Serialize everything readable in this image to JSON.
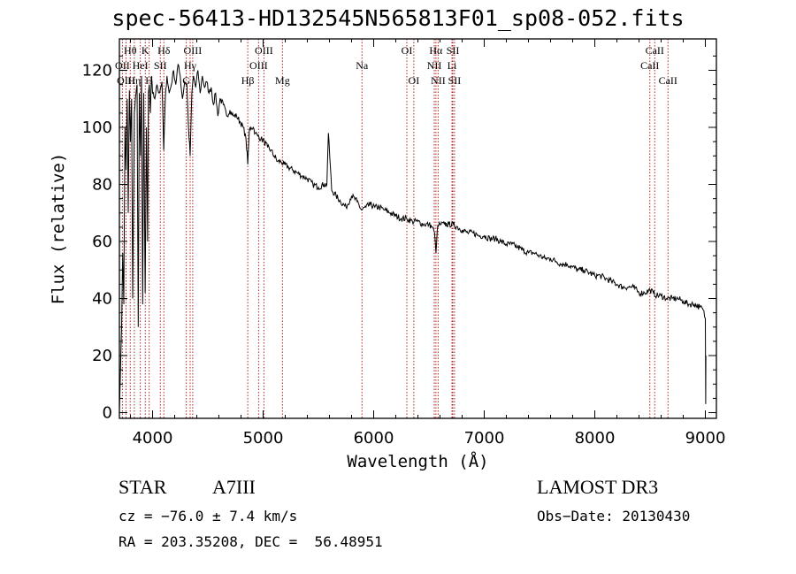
{
  "chart_data": {
    "type": "line",
    "title": "spec-56413-HD132545N565813F01_sp08-052.fits",
    "xlabel": "Wavelength (Å)",
    "ylabel": "Flux (relative)",
    "xlim": [
      3700,
      9100
    ],
    "ylim": [
      -2,
      131
    ],
    "xticks": [
      4000,
      5000,
      6000,
      7000,
      8000,
      9000
    ],
    "xtick_labels": [
      "4000",
      "5000",
      "6000",
      "7000",
      "8000",
      "9000"
    ],
    "yticks": [
      0,
      20,
      40,
      60,
      80,
      100,
      120
    ],
    "ytick_labels": [
      "0",
      "20",
      "40",
      "60",
      "80",
      "100",
      "120"
    ],
    "series": [
      {
        "name": "flux",
        "x": [
          3700,
          3720,
          3730,
          3740,
          3750,
          3760,
          3770,
          3780,
          3790,
          3800,
          3810,
          3820,
          3835,
          3850,
          3860,
          3870,
          3880,
          3890,
          3900,
          3910,
          3920,
          3933,
          3945,
          3955,
          3962,
          3970,
          3980,
          3990,
          4000,
          4020,
          4040,
          4060,
          4085,
          4101,
          4115,
          4130,
          4150,
          4170,
          4190,
          4210,
          4230,
          4250,
          4270,
          4290,
          4310,
          4325,
          4340,
          4355,
          4370,
          4390,
          4410,
          4430,
          4450,
          4470,
          4490,
          4510,
          4530,
          4550,
          4570,
          4590,
          4610,
          4640,
          4670,
          4700,
          4730,
          4760,
          4790,
          4820,
          4845,
          4861,
          4875,
          4890,
          4910,
          4930,
          4950,
          4980,
          5010,
          5040,
          5070,
          5100,
          5130,
          5160,
          5190,
          5230,
          5270,
          5310,
          5350,
          5400,
          5450,
          5500,
          5550,
          5577,
          5590,
          5620,
          5660,
          5700,
          5750,
          5800,
          5850,
          5890,
          5930,
          5970,
          6010,
          6050,
          6100,
          6150,
          6200,
          6250,
          6300,
          6350,
          6400,
          6450,
          6500,
          6530,
          6550,
          6563,
          6575,
          6590,
          6610,
          6640,
          6680,
          6720,
          6760,
          6800,
          6850,
          6900,
          6950,
          7000,
          7050,
          7100,
          7150,
          7200,
          7250,
          7300,
          7350,
          7400,
          7450,
          7500,
          7550,
          7600,
          7650,
          7700,
          7750,
          7800,
          7850,
          7900,
          7950,
          8000,
          8050,
          8100,
          8150,
          8200,
          8250,
          8300,
          8350,
          8400,
          8450,
          8500,
          8530,
          8560,
          8600,
          8650,
          8700,
          8750,
          8800,
          8850,
          8900,
          8950,
          8980,
          9000,
          9003,
          9005
        ],
        "y": [
          1,
          30,
          56,
          38,
          100,
          85,
          110,
          70,
          113,
          95,
          110,
          40,
          105,
          112,
          115,
          30,
          112,
          90,
          118,
          38,
          112,
          42,
          100,
          60,
          112,
          115,
          105,
          118,
          112,
          110,
          115,
          112,
          116,
          92,
          110,
          118,
          112,
          115,
          120,
          115,
          122,
          118,
          110,
          116,
          115,
          100,
          90,
          112,
          118,
          114,
          120,
          112,
          118,
          114,
          116,
          112,
          114,
          108,
          112,
          104,
          110,
          108,
          104,
          106,
          104,
          104,
          102,
          100,
          96,
          87,
          99,
          100,
          100,
          98,
          97,
          96,
          95,
          93,
          92,
          90,
          88,
          88,
          87,
          86,
          85,
          84,
          83,
          82,
          80,
          79,
          80,
          80,
          98,
          78,
          76,
          74,
          72,
          76,
          74,
          71,
          72,
          73,
          72,
          72,
          71,
          70,
          69,
          68,
          68,
          67,
          67,
          66,
          66,
          65,
          63,
          56,
          64,
          66,
          66,
          66,
          66,
          66,
          65,
          64,
          63,
          63,
          62,
          62,
          61,
          61,
          60,
          59,
          59,
          58,
          57,
          56,
          56,
          55,
          54,
          54,
          53,
          52,
          52,
          51,
          50,
          50,
          49,
          48,
          48,
          47,
          46,
          45,
          44,
          44,
          44,
          42,
          42,
          43,
          42,
          41,
          41,
          40,
          40,
          40,
          39,
          38,
          38,
          37,
          36,
          33,
          3,
          20
        ]
      }
    ],
    "lines": [
      {
        "label": "Hθ",
        "wave": 3798,
        "tier": 1
      },
      {
        "label": "OII",
        "wave": 3727,
        "tier": 2
      },
      {
        "label": "OIII",
        "wave": 3760,
        "tier": 3
      },
      {
        "label": "Hη",
        "wave": 3835,
        "tier": 3
      },
      {
        "label": "HeI",
        "wave": 3889,
        "tier": 2
      },
      {
        "label": "K",
        "wave": 3934,
        "tier": 1
      },
      {
        "label": "SII",
        "wave": 4070,
        "tier": 2
      },
      {
        "label": "H",
        "wave": 3969,
        "tier": 3
      },
      {
        "label": "Hδ",
        "wave": 4102,
        "tier": 1
      },
      {
        "label": "OIII",
        "wave": 4363,
        "tier": 1
      },
      {
        "label": "Hγ",
        "wave": 4340,
        "tier": 2
      },
      {
        "label": "G",
        "wave": 4305,
        "tier": 3
      },
      {
        "label": "OIII",
        "wave": 5007,
        "tier": 1
      },
      {
        "label": "OIII",
        "wave": 4959,
        "tier": 2
      },
      {
        "label": "Hβ",
        "wave": 4861,
        "tier": 3
      },
      {
        "label": "Mg",
        "wave": 5175,
        "tier": 3
      },
      {
        "label": "Na",
        "wave": 5894,
        "tier": 2
      },
      {
        "label": "OI",
        "wave": 6300,
        "tier": 1
      },
      {
        "label": "OI",
        "wave": 6363,
        "tier": 3
      },
      {
        "label": "Hα",
        "wave": 6563,
        "tier": 1
      },
      {
        "label": "NII",
        "wave": 6548,
        "tier": 2
      },
      {
        "label": "NII",
        "wave": 6583,
        "tier": 3
      },
      {
        "label": "SII",
        "wave": 6716,
        "tier": 1
      },
      {
        "label": "Li",
        "wave": 6708,
        "tier": 2
      },
      {
        "label": "SII",
        "wave": 6731,
        "tier": 3
      },
      {
        "label": "CaII",
        "wave": 8542,
        "tier": 1
      },
      {
        "label": "CaII",
        "wave": 8498,
        "tier": 2
      },
      {
        "label": "CaII",
        "wave": 8662,
        "tier": 3
      }
    ]
  },
  "info": {
    "class_label": "STAR",
    "subclass": "A7III",
    "survey": "LAMOST DR3",
    "cz": "cz = −76.0 ± 7.4 km/s",
    "obs_date": "Obs−Date: 20130430",
    "coords": "RA = 203.35208, DEC =  56.48951"
  },
  "colors": {
    "line_marker": "#b22222",
    "spectrum": "#000000"
  }
}
